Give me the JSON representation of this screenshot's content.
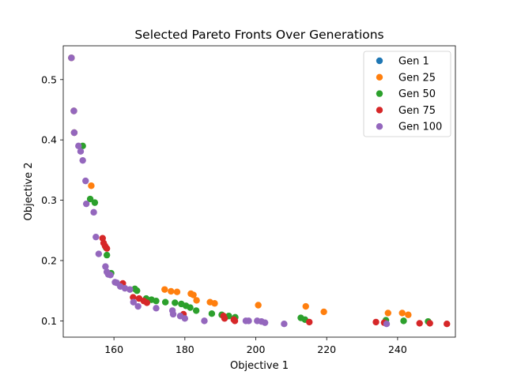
{
  "chart_data": {
    "type": "scatter",
    "title": "Selected Pareto Fronts Over Generations",
    "xlabel": "Objective 1",
    "ylabel": "Objective 2",
    "xlim": [
      145.7,
      256.3
    ],
    "ylim": [
      0.073,
      0.556
    ],
    "x_ticks": [
      160,
      180,
      200,
      220,
      240
    ],
    "y_ticks": [
      0.1,
      0.2,
      0.3,
      0.4,
      0.5
    ],
    "x_tick_labels": [
      "160",
      "180",
      "200",
      "220",
      "240"
    ],
    "y_tick_labels": [
      "0.1",
      "0.2",
      "0.3",
      "0.4",
      "0.5"
    ],
    "grid": false,
    "legend": "top-right",
    "series": [
      {
        "name": "Gen 1",
        "color": "#1f77b4",
        "points": [
          [
            148.0,
            0.536
          ],
          [
            148.7,
            0.448
          ],
          [
            148.8,
            0.412
          ]
        ]
      },
      {
        "name": "Gen 25",
        "color": "#ff7f0e",
        "points": [
          [
            148.0,
            0.536
          ],
          [
            148.7,
            0.448
          ],
          [
            148.8,
            0.412
          ],
          [
            153.6,
            0.324
          ],
          [
            174.3,
            0.152
          ],
          [
            176.1,
            0.149
          ],
          [
            177.8,
            0.148
          ],
          [
            181.7,
            0.145
          ],
          [
            182.4,
            0.143
          ],
          [
            183.3,
            0.134
          ],
          [
            187.1,
            0.131
          ],
          [
            188.4,
            0.129
          ],
          [
            200.7,
            0.126
          ],
          [
            214.1,
            0.124
          ],
          [
            219.2,
            0.115
          ],
          [
            237.3,
            0.113
          ],
          [
            241.3,
            0.113
          ],
          [
            243.0,
            0.11
          ]
        ]
      },
      {
        "name": "Gen 50",
        "color": "#2ca02c",
        "points": [
          [
            151.2,
            0.39
          ],
          [
            153.3,
            0.302
          ],
          [
            154.6,
            0.296
          ],
          [
            157.8,
            0.221
          ],
          [
            158.0,
            0.209
          ],
          [
            159.2,
            0.179
          ],
          [
            165.9,
            0.153
          ],
          [
            166.5,
            0.15
          ],
          [
            169.1,
            0.137
          ],
          [
            170.6,
            0.135
          ],
          [
            171.9,
            0.133
          ],
          [
            174.5,
            0.131
          ],
          [
            177.2,
            0.13
          ],
          [
            179.0,
            0.128
          ],
          [
            180.3,
            0.125
          ],
          [
            181.5,
            0.122
          ],
          [
            183.2,
            0.117
          ],
          [
            187.6,
            0.112
          ],
          [
            190.4,
            0.11
          ],
          [
            192.4,
            0.108
          ],
          [
            194.2,
            0.106
          ],
          [
            212.7,
            0.105
          ],
          [
            213.9,
            0.102
          ],
          [
            236.7,
            0.101
          ],
          [
            241.7,
            0.1
          ],
          [
            248.6,
            0.099
          ]
        ]
      },
      {
        "name": "Gen 75",
        "color": "#d62728",
        "points": [
          [
            156.8,
            0.237
          ],
          [
            157.1,
            0.229
          ],
          [
            157.5,
            0.224
          ],
          [
            158.0,
            0.22
          ],
          [
            162.5,
            0.162
          ],
          [
            165.4,
            0.139
          ],
          [
            167.1,
            0.137
          ],
          [
            168.4,
            0.133
          ],
          [
            169.3,
            0.13
          ],
          [
            179.6,
            0.111
          ],
          [
            190.9,
            0.108
          ],
          [
            191.2,
            0.104
          ],
          [
            193.8,
            0.102
          ],
          [
            194.1,
            0.1
          ],
          [
            215.1,
            0.098
          ],
          [
            233.9,
            0.098
          ],
          [
            236.2,
            0.097
          ],
          [
            246.2,
            0.096
          ],
          [
            249.1,
            0.096
          ],
          [
            253.9,
            0.095
          ]
        ]
      },
      {
        "name": "Gen 100",
        "color": "#9467bd",
        "points": [
          [
            148.0,
            0.536
          ],
          [
            148.7,
            0.448
          ],
          [
            148.8,
            0.412
          ],
          [
            150.0,
            0.39
          ],
          [
            150.6,
            0.381
          ],
          [
            151.2,
            0.366
          ],
          [
            152.0,
            0.332
          ],
          [
            152.2,
            0.294
          ],
          [
            154.3,
            0.28
          ],
          [
            154.9,
            0.239
          ],
          [
            155.7,
            0.211
          ],
          [
            157.6,
            0.19
          ],
          [
            158.0,
            0.181
          ],
          [
            158.4,
            0.177
          ],
          [
            159.0,
            0.176
          ],
          [
            160.3,
            0.164
          ],
          [
            160.8,
            0.163
          ],
          [
            161.8,
            0.157
          ],
          [
            163.1,
            0.154
          ],
          [
            164.5,
            0.152
          ],
          [
            165.5,
            0.131
          ],
          [
            166.8,
            0.124
          ],
          [
            171.9,
            0.121
          ],
          [
            176.5,
            0.117
          ],
          [
            176.7,
            0.111
          ],
          [
            178.7,
            0.108
          ],
          [
            180.0,
            0.104
          ],
          [
            185.5,
            0.1
          ],
          [
            197.2,
            0.1
          ],
          [
            198.0,
            0.1
          ],
          [
            200.4,
            0.1
          ],
          [
            201.6,
            0.099
          ],
          [
            202.6,
            0.097
          ],
          [
            208.0,
            0.095
          ],
          [
            236.9,
            0.095
          ]
        ]
      }
    ]
  }
}
